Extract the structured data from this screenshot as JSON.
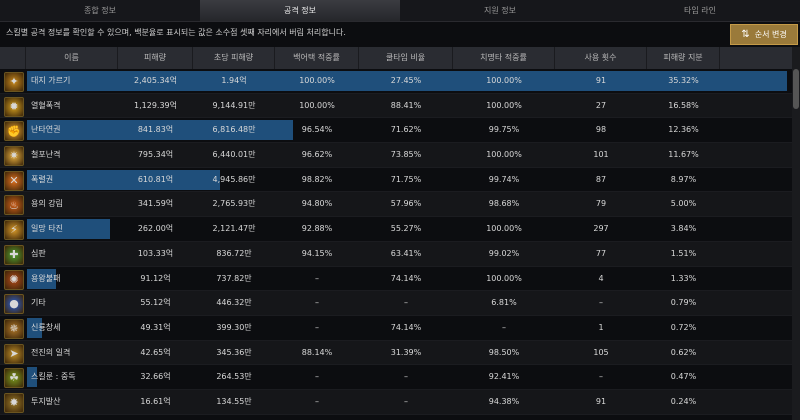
{
  "tabs": [
    "종합 정보",
    "공격 정보",
    "지원 정보",
    "타임 라인"
  ],
  "info_text": "스킬별 공격 정보를 확인할 수 있으며, 백분율로 표시되는 값은 소수점 셋째 자리에서 버림 처리합니다.",
  "sort_button": "순서 변경",
  "columns": [
    "이름",
    "피해량",
    "초당 피해량",
    "백어택 적중률",
    "쿨타임 비율",
    "치명타 적중률",
    "사용 횟수",
    "피해량 지분"
  ],
  "rows": [
    {
      "name": "대지 가르기",
      "dmg": "2,405.34억",
      "dps": "1.94억",
      "back": "100.00%",
      "cool": "27.45%",
      "crit": "100.00%",
      "uses": "91",
      "share": "35.32%",
      "share_num": 35.32,
      "icon": "#c8891e",
      "glyph": "✦"
    },
    {
      "name": "열혈폭격",
      "dmg": "1,129.39억",
      "dps": "9,144.91만",
      "back": "100.00%",
      "cool": "88.41%",
      "crit": "100.00%",
      "uses": "27",
      "share": "16.58%",
      "share_num": 16.58,
      "icon": "#d4a020",
      "glyph": "✹"
    },
    {
      "name": "난타연권",
      "dmg": "841.83억",
      "dps": "6,816.48만",
      "back": "96.54%",
      "cool": "71.62%",
      "crit": "99.75%",
      "uses": "98",
      "share": "12.36%",
      "share_num": 12.36,
      "icon": "#e0a030",
      "glyph": "✊"
    },
    {
      "name": "철포난격",
      "dmg": "795.34억",
      "dps": "6,440.01만",
      "back": "96.62%",
      "cool": "73.85%",
      "crit": "100.00%",
      "uses": "101",
      "share": "11.67%",
      "share_num": 11.67,
      "icon": "#e8b040",
      "glyph": "✷"
    },
    {
      "name": "폭렬권",
      "dmg": "610.81억",
      "dps": "4,945.86만",
      "back": "98.82%",
      "cool": "71.75%",
      "crit": "99.74%",
      "uses": "87",
      "share": "8.97%",
      "share_num": 8.97,
      "icon": "#e0701e",
      "glyph": "✕"
    },
    {
      "name": "용의 강림",
      "dmg": "341.59억",
      "dps": "2,765.93만",
      "back": "94.80%",
      "cool": "57.96%",
      "crit": "98.68%",
      "uses": "79",
      "share": "5.00%",
      "share_num": 5.0,
      "icon": "#d0601a",
      "glyph": "♨"
    },
    {
      "name": "일망 타진",
      "dmg": "262.00억",
      "dps": "2,121.47만",
      "back": "92.88%",
      "cool": "55.27%",
      "crit": "100.00%",
      "uses": "297",
      "share": "3.84%",
      "share_num": 3.84,
      "icon": "#d89a2a",
      "glyph": "⚡"
    },
    {
      "name": "심판",
      "dmg": "103.33억",
      "dps": "836.72만",
      "back": "94.15%",
      "cool": "63.41%",
      "crit": "99.02%",
      "uses": "77",
      "share": "1.51%",
      "share_num": 1.51,
      "icon": "#4fa030",
      "glyph": "✚"
    },
    {
      "name": "용왕불패",
      "dmg": "91.12억",
      "dps": "737.82만",
      "back": "–",
      "cool": "74.14%",
      "crit": "100.00%",
      "uses": "4",
      "share": "1.33%",
      "share_num": 1.33,
      "icon": "#b04a1a",
      "glyph": "✺"
    },
    {
      "name": "기타",
      "dmg": "55.12억",
      "dps": "446.32만",
      "back": "–",
      "cool": "–",
      "crit": "6.81%",
      "uses": "–",
      "share": "0.79%",
      "share_num": 0.79,
      "icon": "#2a5fd0",
      "glyph": "●"
    },
    {
      "name": "신룡창세",
      "dmg": "49.31억",
      "dps": "399.30만",
      "back": "–",
      "cool": "74.14%",
      "crit": "–",
      "uses": "1",
      "share": "0.72%",
      "share_num": 0.72,
      "icon": "#b0782a",
      "glyph": "✵"
    },
    {
      "name": "전진의 일격",
      "dmg": "42.65억",
      "dps": "345.36만",
      "back": "88.14%",
      "cool": "31.39%",
      "crit": "98.50%",
      "uses": "105",
      "share": "0.62%",
      "share_num": 0.62,
      "icon": "#c0902a",
      "glyph": "➤"
    },
    {
      "name": "스킬룬 : 중독",
      "dmg": "32.66억",
      "dps": "264.53만",
      "back": "–",
      "cool": "–",
      "crit": "92.41%",
      "uses": "–",
      "share": "0.47%",
      "share_num": 0.47,
      "icon": "#7a9a20",
      "glyph": "☘"
    },
    {
      "name": "투지발산",
      "dmg": "16.61억",
      "dps": "134.55만",
      "back": "–",
      "cool": "–",
      "crit": "94.38%",
      "uses": "91",
      "share": "0.24%",
      "share_num": 0.24,
      "icon": "#9a7a2a",
      "glyph": "✸"
    }
  ]
}
